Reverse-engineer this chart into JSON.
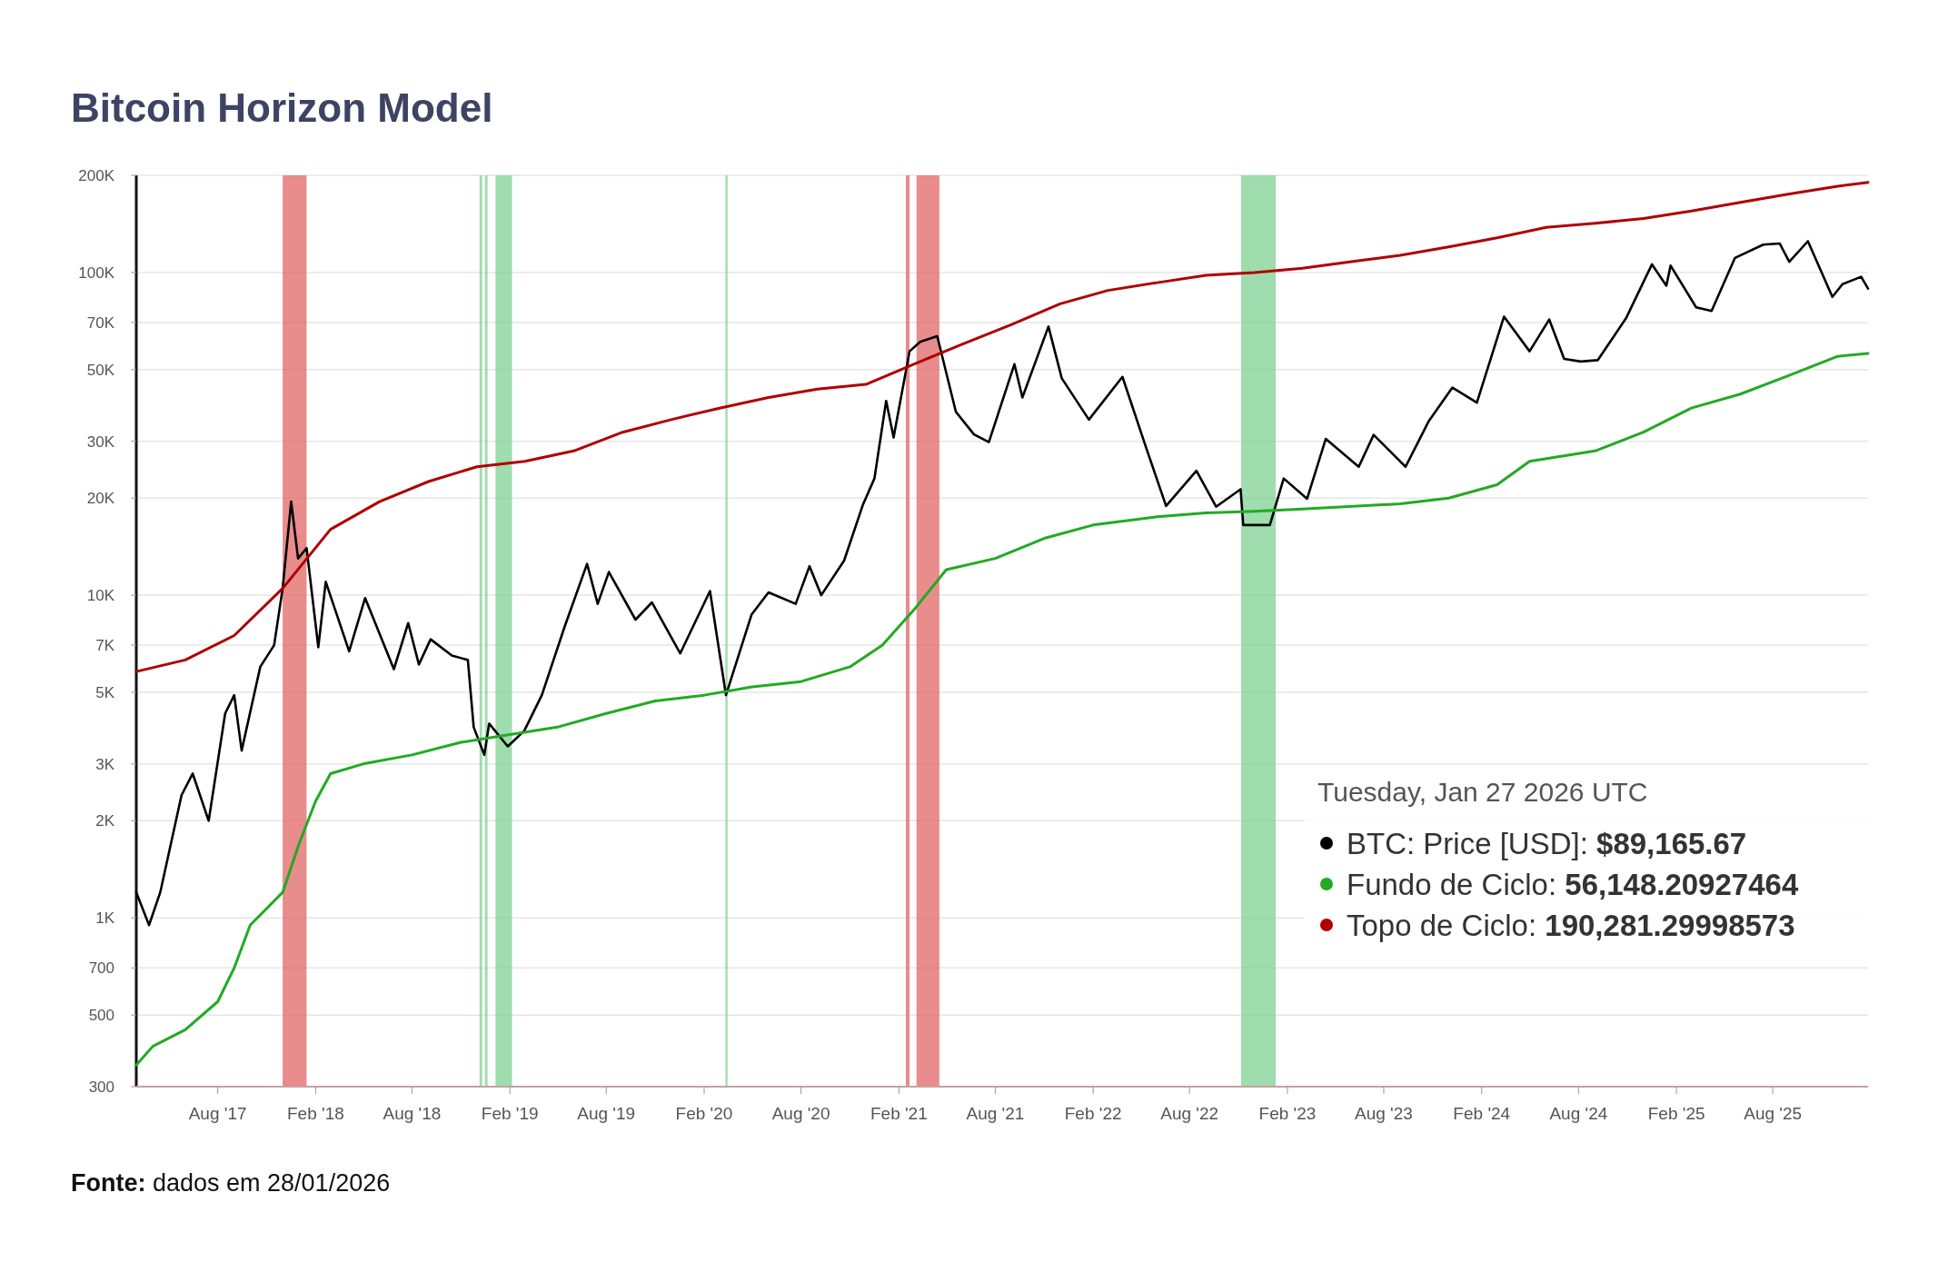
{
  "chart_data": {
    "type": "line",
    "title": "Bitcoin Horizon Model",
    "xlim": [
      "2017-03-01",
      "2026-01-27"
    ],
    "xticks": [
      {
        "value": "2017-08-01",
        "label": "Aug '17"
      },
      {
        "value": "2018-02-01",
        "label": "Feb '18"
      },
      {
        "value": "2018-08-01",
        "label": "Aug '18"
      },
      {
        "value": "2019-02-01",
        "label": "Feb '19"
      },
      {
        "value": "2019-08-01",
        "label": "Aug '19"
      },
      {
        "value": "2020-02-01",
        "label": "Feb '20"
      },
      {
        "value": "2020-08-01",
        "label": "Aug '20"
      },
      {
        "value": "2021-02-01",
        "label": "Feb '21"
      },
      {
        "value": "2021-08-01",
        "label": "Aug '21"
      },
      {
        "value": "2022-02-01",
        "label": "Feb '22"
      },
      {
        "value": "2022-08-01",
        "label": "Aug '22"
      },
      {
        "value": "2023-02-01",
        "label": "Feb '23"
      },
      {
        "value": "2023-08-01",
        "label": "Aug '23"
      },
      {
        "value": "2024-02-01",
        "label": "Feb '24"
      },
      {
        "value": "2024-08-01",
        "label": "Aug '24"
      },
      {
        "value": "2025-02-01",
        "label": "Feb '25"
      },
      {
        "value": "2025-08-01",
        "label": "Aug '25"
      }
    ],
    "ylim": [
      300,
      200000
    ],
    "yticks": [
      300,
      500,
      700,
      {
        "value": 1000,
        "label": "1K"
      },
      {
        "value": 2000,
        "label": "2K"
      },
      {
        "value": 3000,
        "label": "3K"
      },
      {
        "value": 5000,
        "label": "5K"
      },
      {
        "value": 7000,
        "label": "7K"
      },
      {
        "value": 10000,
        "label": "10K"
      },
      {
        "value": 20000,
        "label": "20K"
      },
      {
        "value": 30000,
        "label": "30K"
      },
      {
        "value": 50000,
        "label": "50K"
      },
      {
        "value": 70000,
        "label": "70K"
      },
      {
        "value": 100000,
        "label": "100K"
      },
      {
        "value": 200000,
        "label": "200K"
      }
    ],
    "log": "y",
    "grid": "y",
    "legend": "bottom right",
    "marker": "none",
    "line_style": "solid",
    "series": [
      {
        "name": "BTC: Price [USD]",
        "color": "#000000",
        "x": [
          "2017-03-01",
          "2017-03-25",
          "2017-04-15",
          "2017-05-25",
          "2017-06-15",
          "2017-07-15",
          "2017-08-15",
          "2017-09-01",
          "2017-09-15",
          "2017-10-20",
          "2017-11-15",
          "2017-12-01",
          "2017-12-17",
          "2017-12-30",
          "2018-01-15",
          "2018-02-06",
          "2018-02-20",
          "2018-04-05",
          "2018-05-05",
          "2018-06-28",
          "2018-07-25",
          "2018-08-14",
          "2018-09-05",
          "2018-10-15",
          "2018-11-14",
          "2018-11-25",
          "2018-12-15",
          "2018-12-24",
          "2019-01-28",
          "2019-02-28",
          "2019-04-02",
          "2019-05-15",
          "2019-06-26",
          "2019-07-16",
          "2019-08-06",
          "2019-09-25",
          "2019-10-26",
          "2019-12-18",
          "2020-02-12",
          "2020-03-13",
          "2020-04-30",
          "2020-06-01",
          "2020-07-22",
          "2020-08-17",
          "2020-09-08",
          "2020-10-21",
          "2020-11-25",
          "2020-12-17",
          "2021-01-08",
          "2021-01-22",
          "2021-02-21",
          "2021-03-13",
          "2021-04-14",
          "2021-05-19",
          "2021-06-22",
          "2021-07-20",
          "2021-09-06",
          "2021-09-21",
          "2021-11-09",
          "2021-12-04",
          "2022-01-24",
          "2022-03-28",
          "2022-05-12",
          "2022-06-18",
          "2022-08-14",
          "2022-09-20",
          "2022-11-05",
          "2022-11-10",
          "2022-12-30",
          "2023-01-25",
          "2023-03-10",
          "2023-04-14",
          "2023-06-15",
          "2023-07-13",
          "2023-09-11",
          "2023-10-24",
          "2023-12-08",
          "2024-01-23",
          "2024-03-14",
          "2024-05-01",
          "2024-06-07",
          "2024-07-05",
          "2024-08-05",
          "2024-09-06",
          "2024-10-29",
          "2024-12-17",
          "2025-01-13",
          "2025-01-21",
          "2025-03-10",
          "2025-04-08",
          "2025-05-22",
          "2025-07-14",
          "2025-08-14",
          "2025-09-01",
          "2025-10-06",
          "2025-11-21",
          "2025-12-10",
          "2026-01-14",
          "2026-01-27"
        ],
        "values": [
          1200,
          950,
          1200,
          2400,
          2800,
          2000,
          4300,
          4900,
          3300,
          6000,
          7000,
          10500,
          19500,
          13000,
          14000,
          6900,
          11000,
          6700,
          9800,
          5900,
          8200,
          6100,
          7300,
          6500,
          6300,
          3900,
          3200,
          4000,
          3400,
          3800,
          4900,
          8000,
          12500,
          9400,
          11800,
          8400,
          9500,
          6600,
          10300,
          4900,
          8700,
          10200,
          9400,
          12300,
          10000,
          12800,
          19000,
          23000,
          40000,
          30800,
          57000,
          61000,
          63500,
          37000,
          31500,
          29800,
          52000,
          41000,
          68000,
          47000,
          35000,
          47500,
          28500,
          18900,
          24300,
          18800,
          21300,
          16500,
          16500,
          23000,
          19900,
          30500,
          25000,
          31400,
          25000,
          34500,
          44000,
          39500,
          73000,
          57000,
          71500,
          54000,
          53000,
          53500,
          72000,
          106000,
          91000,
          105000,
          78000,
          76000,
          111000,
          122000,
          123000,
          108000,
          125000,
          84000,
          92000,
          97000,
          89165.67
        ]
      },
      {
        "name": "Fundo de Ciclo",
        "color": "#22aa22",
        "x": [
          "2017-03-01",
          "2017-04-01",
          "2017-06-01",
          "2017-08-01",
          "2017-09-01",
          "2017-10-01",
          "2017-12-01",
          "2018-01-01",
          "2018-02-01",
          "2018-03-01",
          "2018-05-01",
          "2018-08-01",
          "2018-11-01",
          "2019-02-01",
          "2019-05-01",
          "2019-08-01",
          "2019-11-01",
          "2020-02-01",
          "2020-05-01",
          "2020-08-01",
          "2020-11-01",
          "2021-01-01",
          "2021-03-01",
          "2021-05-01",
          "2021-08-01",
          "2021-11-01",
          "2022-02-01",
          "2022-06-01",
          "2022-09-01",
          "2022-12-01",
          "2023-03-01",
          "2023-09-01",
          "2023-12-01",
          "2024-03-01",
          "2024-05-01",
          "2024-09-01",
          "2024-12-01",
          "2025-03-01",
          "2025-06-01",
          "2025-09-01",
          "2025-12-01",
          "2026-01-27"
        ],
        "values": [
          350,
          400,
          450,
          550,
          700,
          950,
          1200,
          1700,
          2300,
          2800,
          3000,
          3200,
          3500,
          3700,
          3900,
          4300,
          4700,
          4900,
          5200,
          5400,
          6000,
          7000,
          9000,
          12000,
          13000,
          15000,
          16500,
          17500,
          18000,
          18200,
          18500,
          19200,
          20000,
          22000,
          26000,
          28000,
          32000,
          38000,
          42000,
          48000,
          55000,
          56148.21
        ]
      },
      {
        "name": "Topo de Ciclo",
        "color": "#b00000",
        "x": [
          "2017-03-01",
          "2017-06-01",
          "2017-09-01",
          "2017-12-01",
          "2018-03-01",
          "2018-06-01",
          "2018-09-01",
          "2018-12-01",
          "2019-03-01",
          "2019-06-01",
          "2019-09-01",
          "2019-12-01",
          "2020-03-01",
          "2020-06-01",
          "2020-09-01",
          "2020-12-01",
          "2021-03-01",
          "2021-06-01",
          "2021-09-01",
          "2021-12-01",
          "2022-03-01",
          "2022-06-01",
          "2022-09-01",
          "2022-12-01",
          "2023-03-01",
          "2023-06-01",
          "2023-09-01",
          "2023-12-01",
          "2024-03-01",
          "2024-06-01",
          "2024-09-01",
          "2024-12-01",
          "2025-03-01",
          "2025-06-01",
          "2025-09-01",
          "2025-12-01",
          "2026-01-27"
        ],
        "values": [
          5800,
          6300,
          7500,
          10500,
          16000,
          19500,
          22500,
          25000,
          26000,
          28000,
          32000,
          35000,
          38000,
          41000,
          43500,
          45000,
          52000,
          60000,
          69000,
          80000,
          88000,
          93000,
          98000,
          100000,
          103000,
          108000,
          113000,
          120000,
          128000,
          138000,
          142000,
          147000,
          155000,
          165000,
          175000,
          185000,
          190281.3
        ]
      }
    ],
    "bands": [
      {
        "axis": "x",
        "from": "2017-12-01",
        "to": "2018-01-15",
        "color": "#e06666"
      },
      {
        "axis": "x",
        "from": "2021-02-14",
        "to": "2021-02-21",
        "color": "#e06666"
      },
      {
        "axis": "x",
        "from": "2021-03-06",
        "to": "2021-04-18",
        "color": "#e06666"
      },
      {
        "axis": "x",
        "from": "2018-12-06",
        "to": "2018-12-11",
        "color": "#7fd093"
      },
      {
        "axis": "x",
        "from": "2018-12-16",
        "to": "2018-12-21",
        "color": "#7fd093"
      },
      {
        "axis": "x",
        "from": "2019-01-05",
        "to": "2019-02-05",
        "color": "#7fd093"
      },
      {
        "axis": "x",
        "from": "2020-03-12",
        "to": "2020-03-16",
        "color": "#7fd093"
      },
      {
        "axis": "x",
        "from": "2022-11-06",
        "to": "2023-01-10",
        "color": "#7fd093"
      }
    ],
    "annotations": [
      "Tuesday, Jan 27 2026 UTC",
      ": $89,165.67",
      ": 56,148.20927464",
      ": 190,281.29998573",
      "Fonte: dados em 28/01/2026"
    ]
  }
}
